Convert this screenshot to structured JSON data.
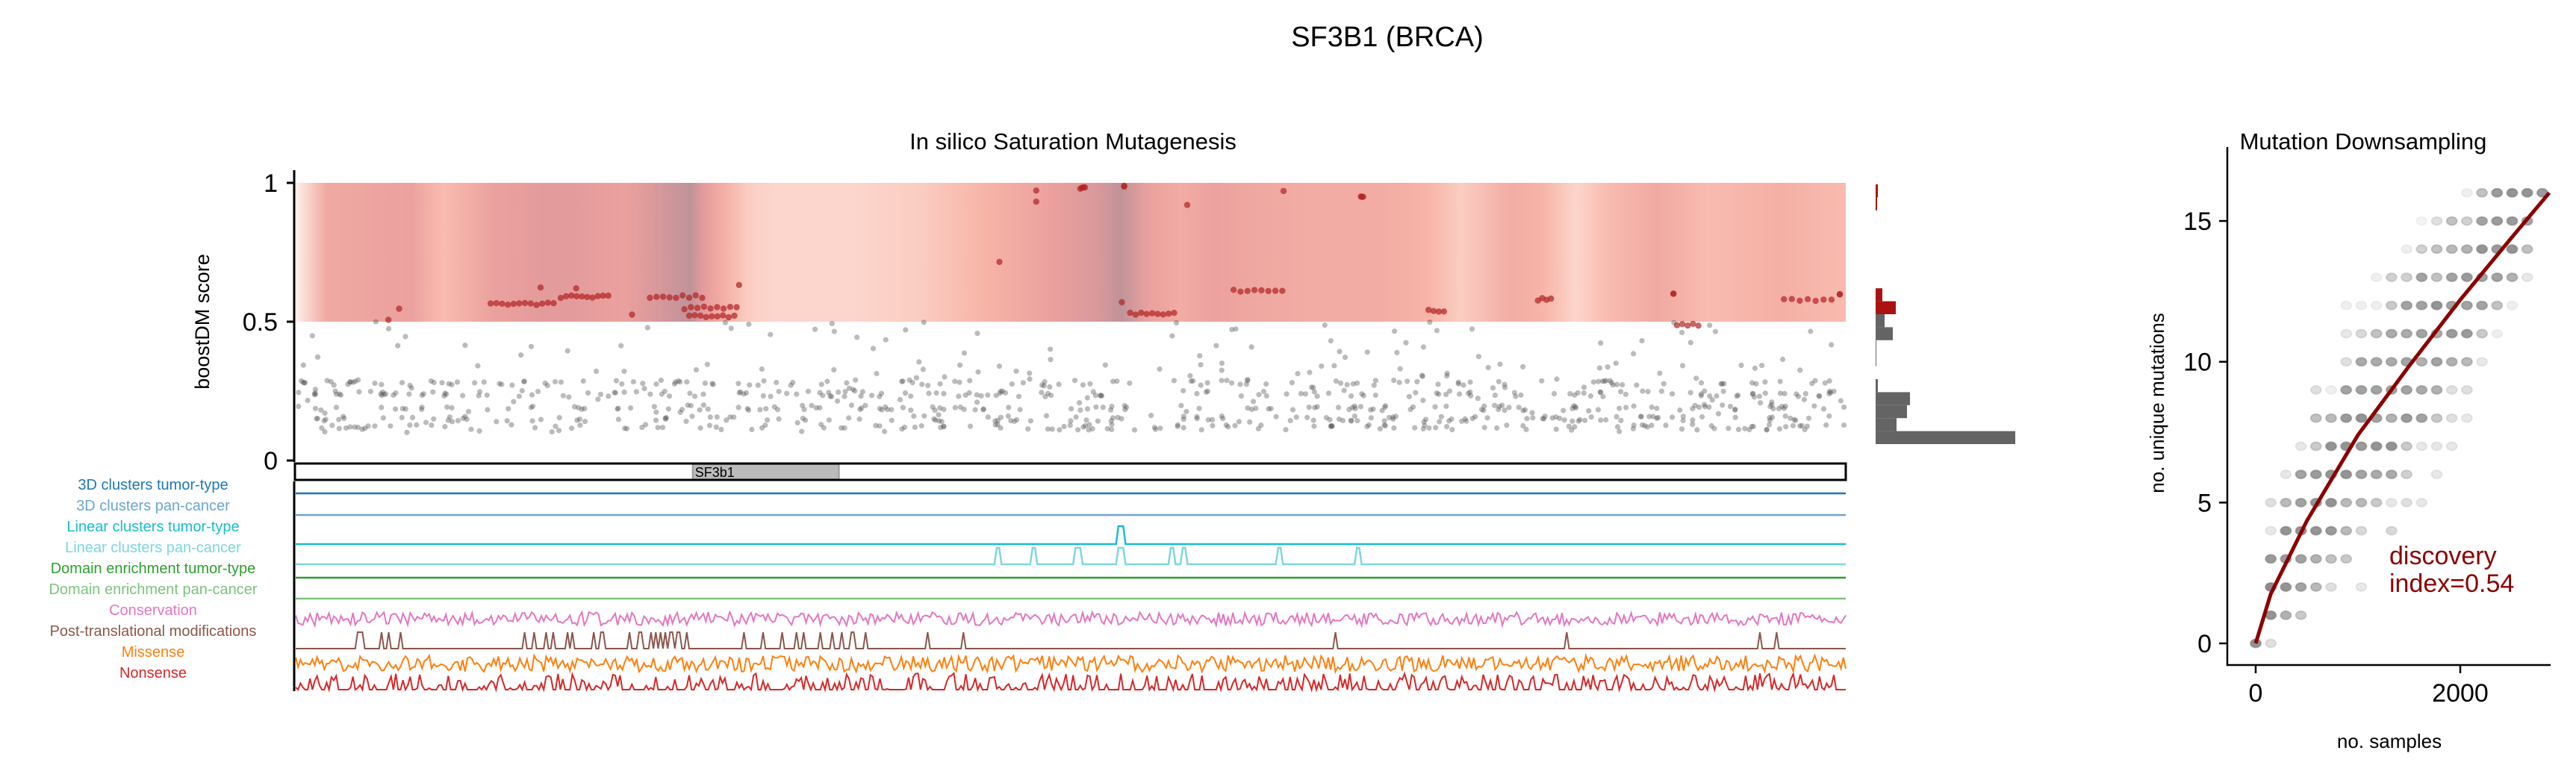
{
  "figure": {
    "title": "SF3B1 (BRCA)"
  },
  "chart_data": [
    {
      "type": "scatter",
      "title": "In silico Saturation Mutagenesis",
      "ylabel": "boostDM score",
      "xlabel": "",
      "ylim": [
        0,
        1.05
      ],
      "yticks": [
        "0",
        "0.5",
        "1"
      ],
      "protein_length": 1304,
      "driver_threshold": 0.5,
      "colors": {
        "driver": "#b22222",
        "passenger": "#555555",
        "hist_driver": "#ab1212",
        "hist_passenger": "#646464"
      },
      "heat_profile": {
        "positions": [
          0,
          26,
          97,
          124,
          166,
          207,
          235,
          276,
          304,
          332,
          343,
          361,
          381,
          401,
          470,
          524,
          580,
          635,
          677,
          694,
          718,
          745,
          773,
          815,
          856,
          911,
          953,
          980,
          1022,
          1049,
          1077,
          1104,
          1146,
          1187,
          1249,
          1304
        ],
        "intensity": [
          0.0,
          0.5,
          0.6,
          0.3,
          0.6,
          0.7,
          0.7,
          0.6,
          0.8,
          1.0,
          0.7,
          0.4,
          0.2,
          0.15,
          0.15,
          0.2,
          0.35,
          0.6,
          0.8,
          1.0,
          0.6,
          0.45,
          0.6,
          0.5,
          0.45,
          0.45,
          0.35,
          0.2,
          0.45,
          0.35,
          0.15,
          0.3,
          0.5,
          0.3,
          0.4,
          0.3
        ]
      },
      "driver_clusters": [
        [
          164,
          217,
          0.565,
          12
        ],
        [
          223,
          263,
          0.59,
          10
        ],
        [
          206,
          206,
          0.62,
          1
        ],
        [
          236,
          236,
          0.62,
          1
        ],
        [
          87,
          87,
          0.55,
          1
        ],
        [
          78,
          78,
          0.51,
          1
        ],
        [
          298,
          342,
          0.59,
          9
        ],
        [
          327,
          371,
          0.55,
          9
        ],
        [
          331,
          369,
          0.52,
          9
        ],
        [
          373,
          373,
          0.63,
          1
        ],
        [
          283,
          283,
          0.53,
          1
        ],
        [
          623,
          623,
          0.97,
          1
        ],
        [
          623,
          623,
          0.93,
          1
        ],
        [
          592,
          592,
          0.72,
          1
        ],
        [
          660,
          664,
          0.98,
          4
        ],
        [
          697,
          697,
          0.99,
          2
        ],
        [
          695,
          695,
          0.57,
          1
        ],
        [
          702,
          739,
          0.53,
          9
        ],
        [
          750,
          750,
          0.92,
          1
        ],
        [
          831,
          831,
          0.97,
          1
        ],
        [
          896,
          898,
          0.95,
          3
        ],
        [
          789,
          830,
          0.61,
          8
        ],
        [
          953,
          966,
          0.54,
          4
        ],
        [
          1045,
          1056,
          0.58,
          4
        ],
        [
          1159,
          1159,
          0.6,
          2
        ],
        [
          1162,
          1180,
          0.49,
          5
        ],
        [
          1252,
          1292,
          0.58,
          7
        ],
        [
          1299,
          1299,
          0.6,
          2
        ]
      ],
      "passenger_score_bands": [
        0.12,
        0.15,
        0.19,
        0.24,
        0.28
      ],
      "histogram": {
        "bin_width": 0.05,
        "bins_from_top": [
          {
            "count": 3,
            "class": "driver"
          },
          {
            "count": 2,
            "class": "driver"
          },
          {
            "count": 0,
            "class": "driver"
          },
          {
            "count": 0,
            "class": "driver"
          },
          {
            "count": 0,
            "class": "driver"
          },
          {
            "count": 0,
            "class": "driver"
          },
          {
            "count": 0,
            "class": "driver"
          },
          {
            "count": 0,
            "class": "driver"
          },
          {
            "count": 9,
            "class": "driver"
          },
          {
            "count": 27,
            "class": "driver"
          },
          {
            "count": 12,
            "class": "passenger"
          },
          {
            "count": 23,
            "class": "passenger"
          },
          {
            "count": 1,
            "class": "passenger"
          },
          {
            "count": 1,
            "class": "passenger"
          },
          {
            "count": 0,
            "class": "passenger"
          },
          {
            "count": 3,
            "class": "passenger"
          },
          {
            "count": 46,
            "class": "passenger"
          },
          {
            "count": 42,
            "class": "passenger"
          },
          {
            "count": 28,
            "class": "passenger"
          },
          {
            "count": 187,
            "class": "passenger"
          }
        ]
      }
    },
    {
      "type": "table",
      "gene_domain": {
        "label": "SF3b1",
        "start": 334,
        "end": 457,
        "color": "#bbbbbb"
      },
      "tracks": [
        {
          "label": "3D clusters tumor-type",
          "color": "#1f77b4",
          "kind": "flat",
          "peaks": []
        },
        {
          "label": "3D clusters pan-cancer",
          "color": "#6aa5d3",
          "kind": "flat",
          "peaks": []
        },
        {
          "label": "Linear clusters tumor-type",
          "color": "#17becf",
          "kind": "flat",
          "peaks": [
            694
          ]
        },
        {
          "label": "Linear clusters pan-cancer",
          "color": "#7dd6e1",
          "kind": "flat",
          "peaks": [
            591,
            621,
            658,
            694,
            738,
            747,
            828,
            894
          ]
        },
        {
          "label": "Domain enrichment tumor-type",
          "color": "#2ca02c",
          "kind": "flat",
          "peaks": []
        },
        {
          "label": "Domain enrichment pan-cancer",
          "color": "#7cc47c",
          "kind": "flat",
          "peaks": []
        },
        {
          "label": "Conservation",
          "color": "#e377c2",
          "kind": "noise",
          "peaks": []
        },
        {
          "label": "Post-translational modifications",
          "color": "#8c564b",
          "kind": "spikes",
          "peaks": []
        },
        {
          "label": "Missense",
          "color": "#ff7f0e",
          "kind": "noise",
          "peaks": []
        },
        {
          "label": "Nonsense",
          "color": "#d62728",
          "kind": "bursts",
          "peaks": []
        }
      ]
    },
    {
      "type": "scatter",
      "title": "Mutation Downsampling",
      "xlabel": "no. samples",
      "ylabel": "no. unique mutations",
      "xlim": [
        -250,
        3000
      ],
      "ylim": [
        -0.9,
        16.9
      ],
      "xticks": [
        "0",
        "2000"
      ],
      "yticks": [
        "0",
        "5",
        "10",
        "15"
      ],
      "sample_step": 147.5,
      "rows": [
        {
          "y": 0,
          "cols": [
            [
              0,
              0.7
            ],
            [
              1,
              0.2
            ]
          ]
        },
        {
          "y": 1,
          "cols": [
            [
              1,
              0.7
            ],
            [
              2,
              0.5
            ],
            [
              3,
              0.35
            ]
          ]
        },
        {
          "y": 2,
          "cols": [
            [
              1,
              0.75
            ],
            [
              2,
              0.7
            ],
            [
              3,
              0.6
            ],
            [
              4,
              0.45
            ],
            [
              5,
              0.2
            ],
            [
              7,
              0.15
            ]
          ]
        },
        {
          "y": 3,
          "cols": [
            [
              1,
              0.65
            ],
            [
              2,
              0.65
            ],
            [
              3,
              0.6
            ],
            [
              4,
              0.5
            ],
            [
              5,
              0.4
            ],
            [
              6,
              0.35
            ]
          ]
        },
        {
          "y": 4,
          "cols": [
            [
              1,
              0.15
            ],
            [
              2,
              0.7
            ],
            [
              3,
              0.7
            ],
            [
              4,
              0.7
            ],
            [
              5,
              0.65
            ],
            [
              6,
              0.45
            ],
            [
              7,
              0.25
            ],
            [
              9,
              0.25
            ]
          ]
        },
        {
          "y": 5,
          "cols": [
            [
              1,
              0.2
            ],
            [
              2,
              0.45
            ],
            [
              3,
              0.6
            ],
            [
              4,
              0.7
            ],
            [
              5,
              0.7
            ],
            [
              6,
              0.45
            ],
            [
              7,
              0.45
            ],
            [
              8,
              0.35
            ],
            [
              9,
              0.15
            ],
            [
              10,
              0.2
            ],
            [
              11,
              0.15
            ]
          ]
        },
        {
          "y": 6,
          "cols": [
            [
              2,
              0.15
            ],
            [
              3,
              0.6
            ],
            [
              4,
              0.65
            ],
            [
              5,
              0.7
            ],
            [
              6,
              0.7
            ],
            [
              7,
              0.6
            ],
            [
              8,
              0.55
            ],
            [
              9,
              0.55
            ],
            [
              10,
              0.3
            ],
            [
              12,
              0.15
            ]
          ]
        },
        {
          "y": 7,
          "cols": [
            [
              3,
              0.15
            ],
            [
              4,
              0.35
            ],
            [
              5,
              0.7
            ],
            [
              6,
              0.7
            ],
            [
              7,
              0.65
            ],
            [
              8,
              0.7
            ],
            [
              9,
              0.7
            ],
            [
              10,
              0.35
            ],
            [
              11,
              0.15
            ],
            [
              12,
              0.15
            ],
            [
              13,
              0.15
            ]
          ]
        },
        {
          "y": 8,
          "cols": [
            [
              4,
              0.4
            ],
            [
              5,
              0.45
            ],
            [
              6,
              0.65
            ],
            [
              7,
              0.7
            ],
            [
              8,
              0.6
            ],
            [
              9,
              0.5
            ],
            [
              10,
              0.65
            ],
            [
              11,
              0.6
            ],
            [
              12,
              0.35
            ],
            [
              13,
              0.2
            ],
            [
              14,
              0.15
            ]
          ]
        },
        {
          "y": 9,
          "cols": [
            [
              4,
              0.2
            ],
            [
              5,
              0.1
            ],
            [
              6,
              0.6
            ],
            [
              7,
              0.6
            ],
            [
              8,
              0.6
            ],
            [
              9,
              0.6
            ],
            [
              10,
              0.6
            ],
            [
              11,
              0.55
            ],
            [
              12,
              0.5
            ],
            [
              13,
              0.2
            ],
            [
              14,
              0.2
            ]
          ]
        },
        {
          "y": 10,
          "cols": [
            [
              6,
              0.2
            ],
            [
              7,
              0.55
            ],
            [
              8,
              0.55
            ],
            [
              9,
              0.55
            ],
            [
              10,
              0.6
            ],
            [
              11,
              0.5
            ],
            [
              12,
              0.6
            ],
            [
              13,
              0.5
            ],
            [
              14,
              0.45
            ],
            [
              15,
              0.15
            ]
          ]
        },
        {
          "y": 11,
          "cols": [
            [
              6,
              0.15
            ],
            [
              7,
              0.25
            ],
            [
              8,
              0.4
            ],
            [
              9,
              0.55
            ],
            [
              10,
              0.55
            ],
            [
              11,
              0.6
            ],
            [
              12,
              0.55
            ],
            [
              13,
              0.65
            ],
            [
              14,
              0.65
            ],
            [
              15,
              0.35
            ],
            [
              16,
              0.1
            ]
          ]
        },
        {
          "y": 12,
          "cols": [
            [
              6,
              0.1
            ],
            [
              7,
              0.1
            ],
            [
              8,
              0.1
            ],
            [
              9,
              0.35
            ],
            [
              10,
              0.6
            ],
            [
              11,
              0.6
            ],
            [
              12,
              0.7
            ],
            [
              13,
              0.6
            ],
            [
              14,
              0.6
            ],
            [
              15,
              0.6
            ],
            [
              16,
              0.4
            ],
            [
              17,
              0.1
            ]
          ]
        },
        {
          "y": 13,
          "cols": [
            [
              8,
              0.1
            ],
            [
              9,
              0.3
            ],
            [
              10,
              0.3
            ],
            [
              11,
              0.6
            ],
            [
              12,
              0.4
            ],
            [
              13,
              0.6
            ],
            [
              14,
              0.65
            ],
            [
              15,
              0.6
            ],
            [
              16,
              0.6
            ],
            [
              17,
              0.5
            ],
            [
              18,
              0.15
            ]
          ]
        },
        {
          "y": 14,
          "cols": [
            [
              10,
              0.1
            ],
            [
              11,
              0.3
            ],
            [
              12,
              0.4
            ],
            [
              13,
              0.45
            ],
            [
              14,
              0.5
            ],
            [
              15,
              0.7
            ],
            [
              16,
              0.65
            ],
            [
              17,
              0.7
            ],
            [
              18,
              0.4
            ]
          ]
        },
        {
          "y": 15,
          "cols": [
            [
              11,
              0.08
            ],
            [
              12,
              0.2
            ],
            [
              13,
              0.4
            ],
            [
              14,
              0.3
            ],
            [
              15,
              0.6
            ],
            [
              16,
              0.65
            ],
            [
              17,
              0.65
            ],
            [
              18,
              0.6
            ]
          ]
        },
        {
          "y": 16,
          "cols": [
            [
              14,
              0.1
            ],
            [
              15,
              0.4
            ],
            [
              16,
              0.65
            ],
            [
              17,
              0.7
            ],
            [
              18,
              0.7
            ],
            [
              19,
              0.65
            ]
          ]
        }
      ],
      "fit_curve": {
        "x": [
          0,
          147,
          500,
          1000,
          1500,
          2000,
          2500,
          2870
        ],
        "y": [
          0,
          1.75,
          4.35,
          7.4,
          9.85,
          12.2,
          14.4,
          16
        ],
        "color": "#8b0000"
      },
      "annotation": {
        "line1": "discovery",
        "line2": "index=0.54",
        "value": 0.54
      }
    }
  ]
}
